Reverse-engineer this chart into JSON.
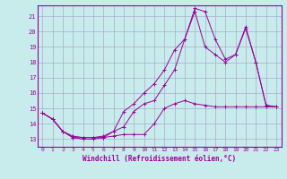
{
  "title": "",
  "xlabel": "Windchill (Refroidissement éolien,°C)",
  "ylabel": "",
  "background_color": "#c8ecec",
  "grid_color": "#aaaacc",
  "line_color": "#990099",
  "xlim": [
    -0.5,
    23.5
  ],
  "ylim": [
    12.5,
    21.7
  ],
  "yticks": [
    13,
    14,
    15,
    16,
    17,
    18,
    19,
    20,
    21
  ],
  "xticks": [
    0,
    1,
    2,
    3,
    4,
    5,
    6,
    7,
    8,
    9,
    10,
    11,
    12,
    13,
    14,
    15,
    16,
    17,
    18,
    19,
    20,
    21,
    22,
    23
  ],
  "series": [
    [
      14.7,
      14.3,
      13.5,
      13.1,
      13.1,
      13.1,
      13.1,
      13.2,
      13.3,
      13.3,
      13.3,
      14.0,
      15.0,
      15.3,
      15.5,
      15.3,
      15.2,
      15.1,
      15.1,
      15.1,
      15.1,
      15.1,
      15.1,
      15.1
    ],
    [
      14.7,
      14.3,
      13.5,
      13.2,
      13.1,
      13.1,
      13.2,
      13.5,
      13.8,
      14.8,
      15.3,
      15.5,
      16.5,
      17.5,
      19.5,
      21.3,
      19.0,
      18.5,
      18.0,
      18.5,
      20.2,
      18.0,
      15.2,
      15.1
    ],
    [
      14.7,
      14.3,
      13.5,
      13.1,
      13.0,
      13.0,
      13.1,
      13.5,
      14.8,
      15.3,
      16.0,
      16.6,
      17.5,
      18.8,
      19.5,
      21.5,
      21.3,
      19.5,
      18.2,
      18.5,
      20.3,
      18.0,
      15.2,
      15.1
    ]
  ]
}
